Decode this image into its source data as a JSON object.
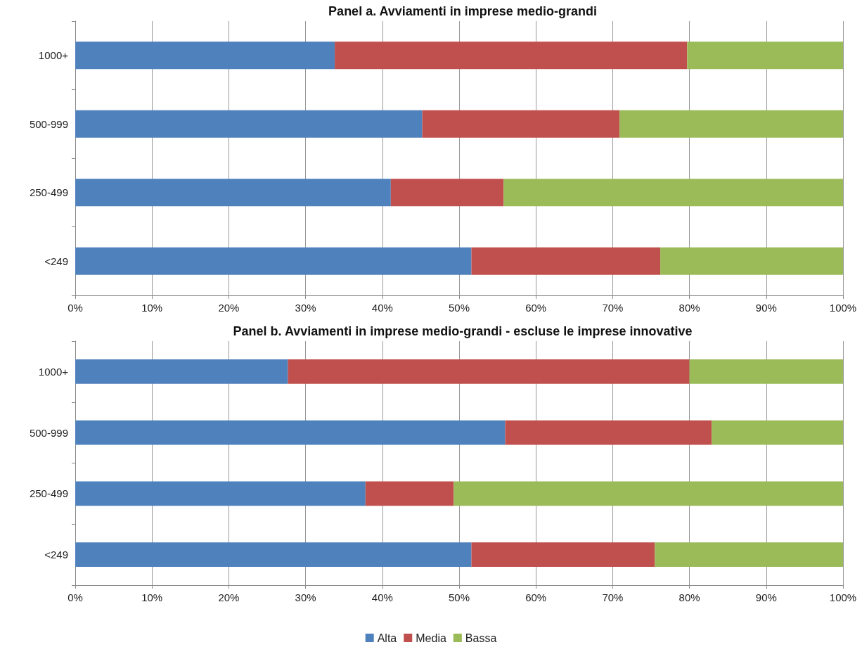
{
  "chart_data": [
    {
      "type": "bar",
      "title": "Panel a. Avviamenti in imprese medio-grandi",
      "orientation": "horizontal",
      "stacked": true,
      "categories": [
        "1000+",
        "500-999",
        "250-499",
        "<249"
      ],
      "series": [
        {
          "color": "#4f81bd",
          "values": [
            33.8,
            45.2,
            41.1,
            51.6
          ]
        },
        {
          "color": "#c0504d",
          "values": [
            45.9,
            25.7,
            14.7,
            24.6
          ]
        },
        {
          "color": "#9bbb59",
          "values": [
            20.3,
            29.1,
            44.2,
            23.8
          ]
        }
      ],
      "xlim": [
        0,
        100
      ],
      "xticks": [
        {
          "value": 0,
          "label": "0%"
        },
        {
          "value": 10,
          "label": "10%"
        },
        {
          "value": 20,
          "label": "20%"
        },
        {
          "value": 30,
          "label": "30%"
        },
        {
          "value": 40,
          "label": "40%"
        },
        {
          "value": 50,
          "label": "50%"
        },
        {
          "value": 60,
          "label": "60%"
        },
        {
          "value": 70,
          "label": "70%"
        },
        {
          "value": 80,
          "label": "80%"
        },
        {
          "value": 90,
          "label": "90%"
        },
        {
          "value": 100,
          "label": "100%"
        }
      ],
      "grid": "x",
      "legend": false
    },
    {
      "type": "bar",
      "title": "Panel b. Avviamenti in imprese medio-grandi - escluse le imprese innovative",
      "orientation": "horizontal",
      "stacked": true,
      "categories": [
        "1000+",
        "500-999",
        "250-499",
        "<249"
      ],
      "series": [
        {
          "name": "Alta",
          "color": "#4f81bd",
          "values": [
            27.7,
            56.0,
            37.8,
            51.6
          ]
        },
        {
          "name": "Media",
          "color": "#c0504d",
          "values": [
            52.3,
            26.9,
            11.5,
            23.9
          ]
        },
        {
          "name": "Bassa",
          "color": "#9bbb59",
          "values": [
            20.0,
            17.1,
            50.7,
            24.5
          ]
        }
      ],
      "xlim": [
        0,
        100
      ],
      "xticks": [
        {
          "value": 0,
          "label": "0%"
        },
        {
          "value": 10,
          "label": "10%"
        },
        {
          "value": 20,
          "label": "20%"
        },
        {
          "value": 30,
          "label": "30%"
        },
        {
          "value": 40,
          "label": "40%"
        },
        {
          "value": 50,
          "label": "50%"
        },
        {
          "value": 60,
          "label": "60%"
        },
        {
          "value": 70,
          "label": "70%"
        },
        {
          "value": 80,
          "label": "80%"
        },
        {
          "value": 90,
          "label": "90%"
        },
        {
          "value": 100,
          "label": "100%"
        }
      ],
      "grid": "x",
      "legend": "bottom"
    }
  ]
}
